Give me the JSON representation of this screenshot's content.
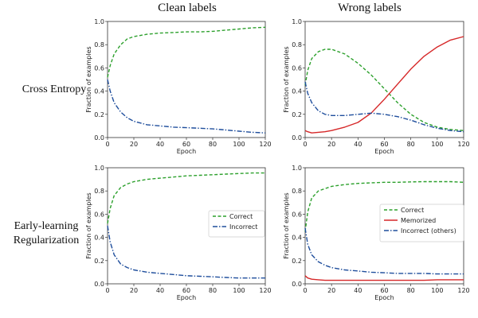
{
  "column_titles": [
    "Clean labels",
    "Wrong labels"
  ],
  "row_titles": [
    "Cross Entropy",
    [
      "Early-learning",
      "Regularization"
    ]
  ],
  "colors": {
    "correct": "#2ca02c",
    "memorized": "#d62728",
    "incorrect": "#1f4e9c"
  },
  "chart_data": [
    {
      "type": "line",
      "panel": "cross-entropy-clean",
      "xlabel": "Epoch",
      "ylabel": "Fraction of examples",
      "xlim": [
        0,
        120
      ],
      "ylim": [
        0,
        1.0
      ],
      "x_ticks": [
        0,
        20,
        40,
        60,
        80,
        100,
        120
      ],
      "y_ticks": [
        0.0,
        0.2,
        0.4,
        0.6,
        0.8,
        1.0
      ],
      "x": [
        0,
        2,
        5,
        10,
        15,
        20,
        30,
        40,
        50,
        60,
        70,
        80,
        90,
        100,
        110,
        120
      ],
      "series": [
        {
          "key": "correct",
          "style": "dashed",
          "values": [
            0.52,
            0.62,
            0.72,
            0.8,
            0.85,
            0.87,
            0.89,
            0.9,
            0.905,
            0.91,
            0.91,
            0.915,
            0.925,
            0.935,
            0.945,
            0.95
          ]
        },
        {
          "key": "incorrect",
          "style": "dashdot",
          "values": [
            0.5,
            0.4,
            0.3,
            0.22,
            0.17,
            0.14,
            0.11,
            0.1,
            0.09,
            0.085,
            0.08,
            0.075,
            0.065,
            0.055,
            0.045,
            0.04
          ]
        }
      ]
    },
    {
      "type": "line",
      "panel": "cross-entropy-wrong",
      "xlabel": "Epoch",
      "ylabel": "Fraction of examples",
      "xlim": [
        0,
        120
      ],
      "ylim": [
        0,
        1.0
      ],
      "x_ticks": [
        0,
        20,
        40,
        60,
        80,
        100,
        120
      ],
      "y_ticks": [
        0.0,
        0.2,
        0.4,
        0.6,
        0.8,
        1.0
      ],
      "x": [
        0,
        2,
        5,
        10,
        15,
        20,
        30,
        40,
        50,
        60,
        70,
        80,
        90,
        100,
        110,
        120
      ],
      "series": [
        {
          "key": "correct",
          "style": "dashed",
          "values": [
            0.45,
            0.58,
            0.68,
            0.74,
            0.76,
            0.76,
            0.72,
            0.64,
            0.54,
            0.42,
            0.3,
            0.2,
            0.13,
            0.09,
            0.07,
            0.06
          ]
        },
        {
          "key": "memorized",
          "style": "solid",
          "values": [
            0.06,
            0.05,
            0.04,
            0.045,
            0.05,
            0.06,
            0.09,
            0.13,
            0.21,
            0.33,
            0.46,
            0.59,
            0.7,
            0.78,
            0.84,
            0.87
          ]
        },
        {
          "key": "incorrect",
          "style": "dashdot",
          "values": [
            0.48,
            0.38,
            0.3,
            0.23,
            0.2,
            0.19,
            0.19,
            0.2,
            0.21,
            0.2,
            0.18,
            0.15,
            0.11,
            0.08,
            0.06,
            0.05
          ]
        }
      ]
    },
    {
      "type": "line",
      "panel": "elr-clean",
      "xlabel": "Epoch",
      "ylabel": "Fraction of examples",
      "xlim": [
        0,
        120
      ],
      "ylim": [
        0,
        1.0
      ],
      "x_ticks": [
        0,
        20,
        40,
        60,
        80,
        100,
        120
      ],
      "y_ticks": [
        0.0,
        0.2,
        0.4,
        0.6,
        0.8,
        1.0
      ],
      "x": [
        0,
        2,
        5,
        10,
        15,
        20,
        30,
        40,
        50,
        60,
        70,
        80,
        90,
        100,
        110,
        120
      ],
      "legend": {
        "placement": "center-right",
        "entries": [
          {
            "key": "correct",
            "label": "Correct"
          },
          {
            "key": "incorrect",
            "label": "Incorrect"
          }
        ]
      },
      "series": [
        {
          "key": "correct",
          "style": "dashed",
          "values": [
            0.52,
            0.65,
            0.76,
            0.83,
            0.86,
            0.88,
            0.9,
            0.91,
            0.92,
            0.93,
            0.935,
            0.94,
            0.945,
            0.95,
            0.955,
            0.955
          ]
        },
        {
          "key": "incorrect",
          "style": "dashdot",
          "values": [
            0.5,
            0.36,
            0.25,
            0.17,
            0.14,
            0.12,
            0.1,
            0.09,
            0.08,
            0.07,
            0.065,
            0.06,
            0.055,
            0.05,
            0.05,
            0.05
          ]
        }
      ]
    },
    {
      "type": "line",
      "panel": "elr-wrong",
      "xlabel": "Epoch",
      "ylabel": "Fraction of examples",
      "xlim": [
        0,
        120
      ],
      "ylim": [
        0,
        1.0
      ],
      "x_ticks": [
        0,
        20,
        40,
        60,
        80,
        100,
        120
      ],
      "y_ticks": [
        0.0,
        0.2,
        0.4,
        0.6,
        0.8,
        1.0
      ],
      "x": [
        0,
        2,
        5,
        10,
        15,
        20,
        30,
        40,
        50,
        60,
        70,
        80,
        90,
        100,
        110,
        120
      ],
      "legend": {
        "placement": "center-right",
        "entries": [
          {
            "key": "correct",
            "label": "Correct"
          },
          {
            "key": "memorized",
            "label": "Memorized"
          },
          {
            "key": "incorrect",
            "label": "Incorrect (others)"
          }
        ]
      },
      "series": [
        {
          "key": "correct",
          "style": "dashed",
          "values": [
            0.45,
            0.62,
            0.74,
            0.8,
            0.82,
            0.84,
            0.855,
            0.865,
            0.87,
            0.875,
            0.875,
            0.878,
            0.88,
            0.88,
            0.88,
            0.875
          ]
        },
        {
          "key": "memorized",
          "style": "solid",
          "values": [
            0.07,
            0.05,
            0.04,
            0.035,
            0.03,
            0.03,
            0.03,
            0.03,
            0.03,
            0.03,
            0.03,
            0.03,
            0.03,
            0.035,
            0.035,
            0.035
          ]
        },
        {
          "key": "incorrect",
          "style": "dashdot",
          "values": [
            0.48,
            0.34,
            0.25,
            0.19,
            0.16,
            0.14,
            0.12,
            0.11,
            0.1,
            0.095,
            0.09,
            0.09,
            0.09,
            0.085,
            0.085,
            0.085
          ]
        }
      ]
    }
  ]
}
